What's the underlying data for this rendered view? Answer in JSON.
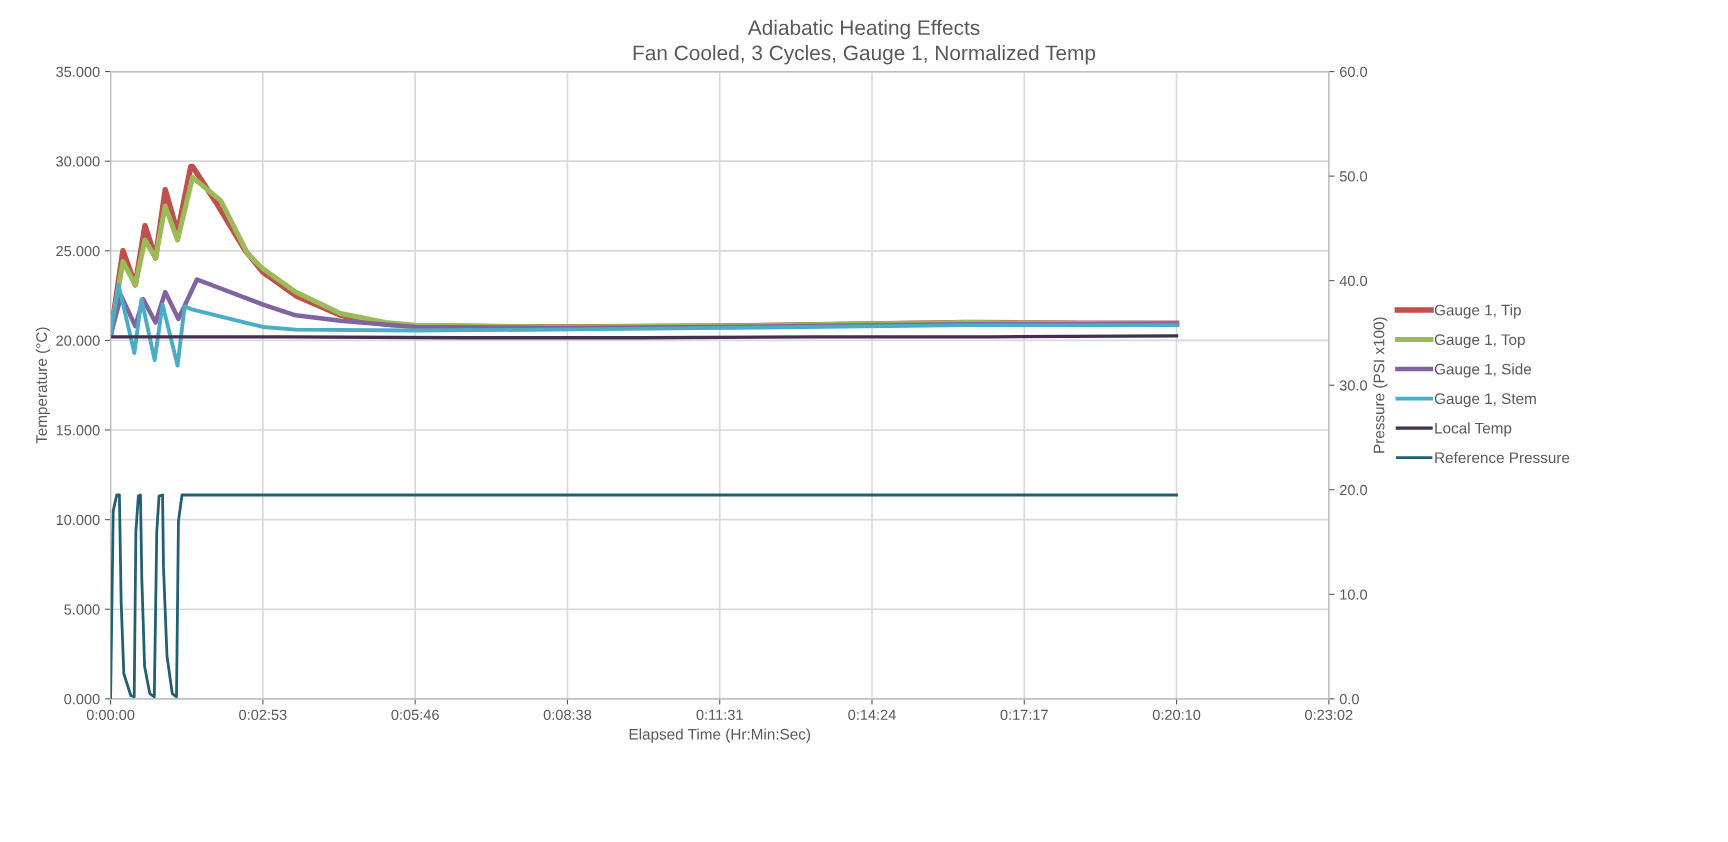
{
  "chart_data": {
    "type": "line",
    "title": "Adiabatic Heating Effects",
    "subtitle": "Fan Cooled, 3 Cycles, Gauge 1, Normalized Temp",
    "xlabel": "Elapsed Time (Hr:Min:Sec)",
    "ylabel": "Temperature (°C)",
    "y2label": "Pressure (PSI x100)",
    "xlim": [
      0,
      1382.4
    ],
    "xticks": [
      {
        "value": 0,
        "label": "0:00:00"
      },
      {
        "value": 172.8,
        "label": "0:02:53"
      },
      {
        "value": 345.6,
        "label": "0:05:46"
      },
      {
        "value": 518.4,
        "label": "0:08:38"
      },
      {
        "value": 691.2,
        "label": "0:11:31"
      },
      {
        "value": 864,
        "label": "0:14:24"
      },
      {
        "value": 1036.8,
        "label": "0:17:17"
      },
      {
        "value": 1209.6,
        "label": "0:20:10"
      },
      {
        "value": 1382.4,
        "label": "0:23:02"
      }
    ],
    "ylim": [
      0,
      35
    ],
    "yticks": [
      {
        "value": 0,
        "label": "0.000"
      },
      {
        "value": 5,
        "label": "5.000"
      },
      {
        "value": 10,
        "label": "10.000"
      },
      {
        "value": 15,
        "label": "15.000"
      },
      {
        "value": 20,
        "label": "20.000"
      },
      {
        "value": 25,
        "label": "25.000"
      },
      {
        "value": 30,
        "label": "30.000"
      },
      {
        "value": 35,
        "label": "35.000"
      }
    ],
    "y2lim": [
      0,
      60
    ],
    "y2ticks": [
      {
        "value": 0,
        "label": "0.0"
      },
      {
        "value": 10,
        "label": "10.0"
      },
      {
        "value": 20,
        "label": "20.0"
      },
      {
        "value": 30,
        "label": "30.0"
      },
      {
        "value": 40,
        "label": "40.0"
      },
      {
        "value": 50,
        "label": "50.0"
      },
      {
        "value": 60,
        "label": "60.0"
      }
    ],
    "grid": true,
    "legend": "right",
    "marker": "none",
    "line_style": "solid",
    "series": [
      {
        "name": "Gauge 1, Tip",
        "color": "#c0504d",
        "x": [
          0,
          14,
          28,
          39,
          51,
          62,
          76,
          91,
          93,
          121,
          153,
          173,
          210,
          261,
          312,
          346,
          500,
          700,
          973,
          1100,
          1209.6
        ],
        "values": [
          20.3,
          25.0,
          23.1,
          26.4,
          24.6,
          28.4,
          26.0,
          29.7,
          29.7,
          27.6,
          25.0,
          23.8,
          22.5,
          21.4,
          20.9,
          20.8,
          20.75,
          20.8,
          21.0,
          20.95,
          20.95
        ]
      },
      {
        "name": "Gauge 1, Top",
        "color": "#9bbb59",
        "x": [
          0,
          14,
          28,
          39,
          51,
          62,
          76,
          93,
          125,
          156,
          173,
          210,
          261,
          312,
          346,
          500,
          700,
          973,
          1100,
          1209.6
        ],
        "values": [
          20.3,
          24.4,
          23.1,
          25.6,
          24.6,
          27.5,
          25.6,
          29.1,
          27.8,
          24.8,
          24.0,
          22.7,
          21.5,
          21.0,
          20.85,
          20.75,
          20.8,
          21.0,
          20.95,
          20.9
        ]
      },
      {
        "name": "Gauge 1, Side",
        "color": "#8064a2",
        "x": [
          0,
          12,
          28,
          37,
          51,
          62,
          77,
          98,
          173,
          210,
          261,
          346,
          500,
          700,
          973,
          1209.6
        ],
        "values": [
          20.3,
          22.5,
          20.8,
          22.3,
          21.0,
          22.7,
          21.2,
          23.4,
          22.0,
          21.4,
          21.1,
          20.75,
          20.7,
          20.75,
          20.9,
          20.9
        ]
      },
      {
        "name": "Gauge 1, Stem",
        "color": "#4bacc6",
        "x": [
          0,
          9,
          27,
          35,
          50,
          59,
          76,
          84,
          91,
          173,
          210,
          346,
          500,
          700,
          973,
          1209.6
        ],
        "values": [
          20.3,
          23.1,
          19.3,
          22.3,
          18.9,
          22.0,
          18.6,
          21.9,
          21.75,
          20.75,
          20.6,
          20.55,
          20.6,
          20.7,
          20.85,
          20.85
        ]
      },
      {
        "name": "Local Temp",
        "color": "#403152",
        "x": [
          0,
          200,
          400,
          600,
          800,
          1000,
          1209.6
        ],
        "values": [
          20.2,
          20.2,
          20.15,
          20.15,
          20.2,
          20.2,
          20.25
        ]
      },
      {
        "name": "Reference Pressure",
        "color": "#215f72",
        "axis": "y2",
        "x": [
          0,
          3,
          7,
          10,
          12,
          15,
          23,
          26.8,
          28.7,
          31.5,
          33.9,
          35.4,
          38.6,
          44.5,
          49.6,
          52.4,
          55,
          59,
          60,
          64,
          70,
          74.8,
          77,
          81,
          1209.6
        ],
        "values": [
          0,
          18.0,
          19.5,
          19.5,
          9.2,
          2.4,
          0.3,
          0.2,
          16.0,
          19.4,
          19.5,
          11.6,
          3.1,
          0.5,
          0.2,
          16.0,
          19.4,
          19.5,
          12.6,
          4.1,
          0.5,
          0.2,
          17.0,
          19.5,
          19.5
        ]
      }
    ]
  }
}
